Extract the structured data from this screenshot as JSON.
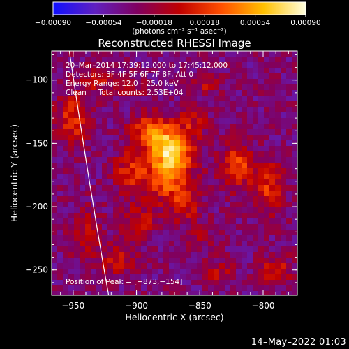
{
  "chart_data": {
    "type": "heatmap",
    "title": "Reconstructed RHESSI Image",
    "xlabel": "Heliocentric X (arcsec)",
    "ylabel": "Heliocentric Y (arcsec)",
    "xlim": [
      -967,
      -773
    ],
    "ylim": [
      -270,
      -77
    ],
    "x_ticks": [
      -950,
      -900,
      -850,
      -800
    ],
    "x_tick_labels": [
      "−950",
      "−900",
      "−850",
      "−800"
    ],
    "y_ticks": [
      -100,
      -150,
      -200,
      -250
    ],
    "y_tick_labels": [
      "−100",
      "−150",
      "−200",
      "−250"
    ],
    "colorbar": {
      "range": [
        -0.0009,
        0.0009
      ],
      "ticks": [
        -0.0009,
        -0.00054,
        -0.00018,
        0.00018,
        0.00054,
        0.0009
      ],
      "tick_labels": [
        "−0.00090",
        "−0.00054",
        "−0.00018",
        "0.00018",
        "0.00054",
        "0.00090"
      ],
      "unit_label": "(photons cm⁻² s⁻¹ asec⁻²)",
      "colors": [
        "#1010ff",
        "#6020c0",
        "#800060",
        "#c00000",
        "#ff5000",
        "#ffc000",
        "#ffffe0"
      ]
    },
    "annotations": [
      "20–Mar–2014 17:39:12.000 to 17:45:12.000",
      "Detectors: 3F 4F 5F 6F 7F 8F, Att 0",
      "Energy Range: 12.0 – 25.0 keV",
      "Clean     Total counts: 2.53E+04"
    ],
    "peak_label": "Position of Peak = [−873,−154]",
    "peak_position": [
      -873,
      -154
    ],
    "limb_curve": {
      "x": [
        -953,
        -938,
        -922
      ],
      "y": [
        -77,
        -175,
        -270
      ]
    },
    "grid": false,
    "hot_spots": [
      {
        "x": -873,
        "y": -154,
        "amp": 0.00095,
        "sx": 12,
        "sy": 12
      },
      {
        "x": -890,
        "y": -140,
        "amp": 0.0006,
        "sx": 10,
        "sy": 9
      },
      {
        "x": -875,
        "y": -178,
        "amp": 0.0006,
        "sx": 13,
        "sy": 13
      },
      {
        "x": -905,
        "y": -172,
        "amp": 0.00045,
        "sx": 9,
        "sy": 12
      },
      {
        "x": -855,
        "y": -133,
        "amp": 0.0003,
        "sx": 8,
        "sy": 8
      },
      {
        "x": -862,
        "y": -200,
        "amp": 0.00035,
        "sx": 9,
        "sy": 9
      },
      {
        "x": -898,
        "y": -212,
        "amp": 0.00035,
        "sx": 10,
        "sy": 10
      },
      {
        "x": -915,
        "y": -243,
        "amp": 0.0004,
        "sx": 9,
        "sy": 8
      },
      {
        "x": -940,
        "y": -220,
        "amp": 0.00035,
        "sx": 8,
        "sy": 14
      },
      {
        "x": -950,
        "y": -130,
        "amp": 0.0005,
        "sx": 9,
        "sy": 14
      },
      {
        "x": -930,
        "y": -100,
        "amp": 0.00035,
        "sx": 8,
        "sy": 8
      },
      {
        "x": -820,
        "y": -168,
        "amp": 0.00055,
        "sx": 10,
        "sy": 12
      },
      {
        "x": -795,
        "y": -185,
        "amp": 0.0005,
        "sx": 8,
        "sy": 14
      },
      {
        "x": -790,
        "y": -250,
        "amp": 0.0004,
        "sx": 9,
        "sy": 8
      },
      {
        "x": -835,
        "y": -252,
        "amp": 0.0003,
        "sx": 8,
        "sy": 7
      },
      {
        "x": -850,
        "y": -225,
        "amp": 0.00025,
        "sx": 7,
        "sy": 7
      },
      {
        "x": -905,
        "y": -105,
        "amp": 0.00025,
        "sx": 8,
        "sy": 6
      },
      {
        "x": -845,
        "y": -102,
        "amp": 0.0003,
        "sx": 7,
        "sy": 7
      }
    ]
  },
  "footer": {
    "timestamp": "14–May–2022 01:03"
  }
}
